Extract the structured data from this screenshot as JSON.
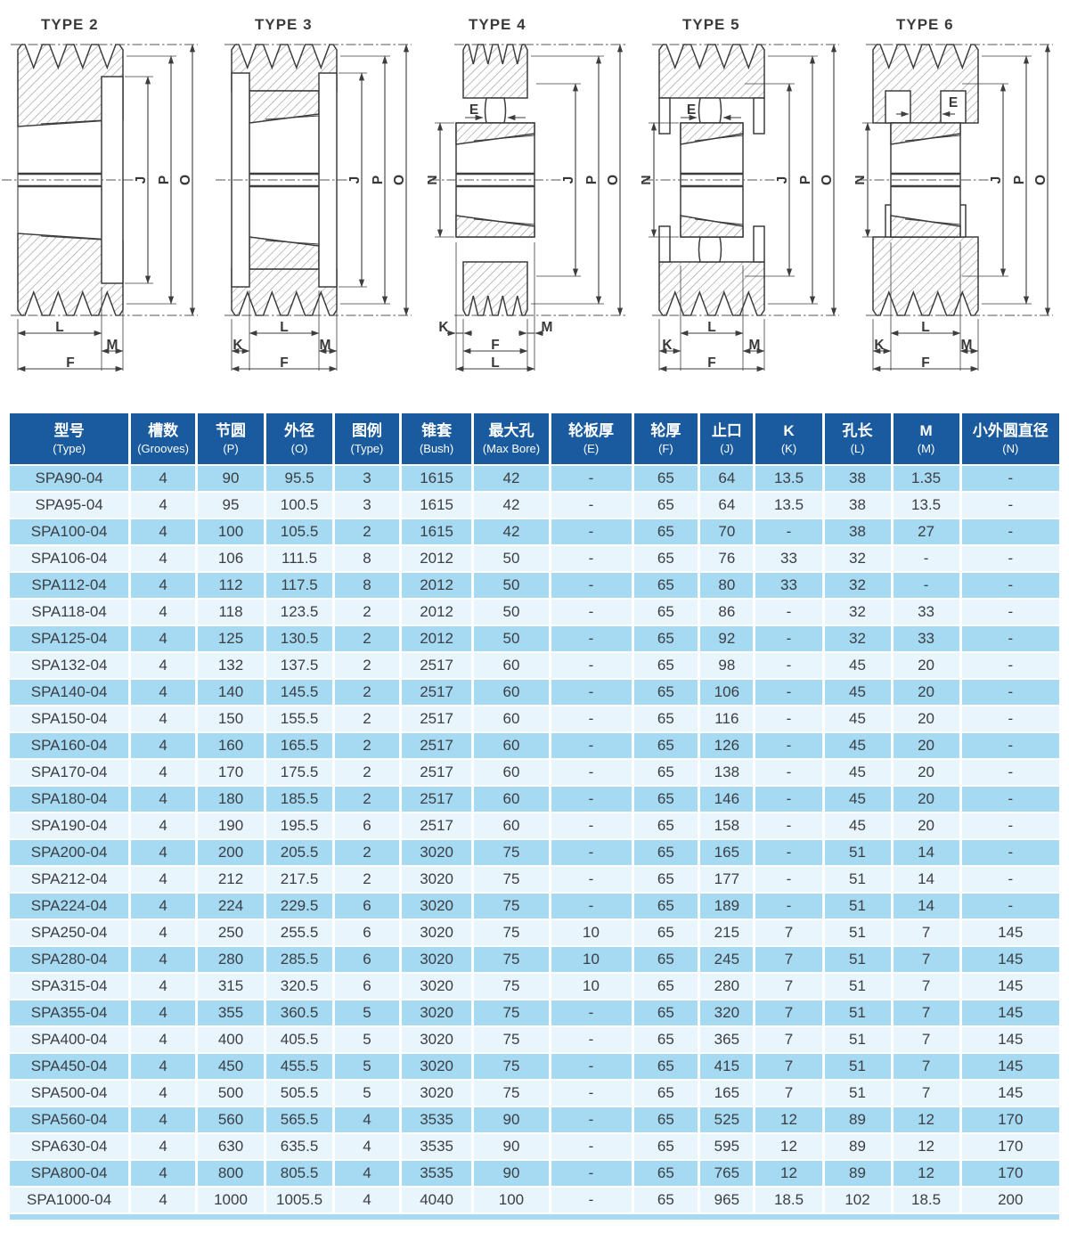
{
  "colors": {
    "header_bg": "#1a5a9e",
    "row_odd": "#a6d9f2",
    "row_even": "#e9f5fc",
    "text": "#3b3e42",
    "header_text": "#ffffff",
    "line": "#3d3d3d"
  },
  "diagrams": [
    {
      "title": "TYPE 2",
      "dims": {
        "J": "J",
        "P": "P",
        "O": "O",
        "L": "L",
        "M": "M",
        "F": "F"
      }
    },
    {
      "title": "TYPE 3",
      "dims": {
        "J": "J",
        "P": "P",
        "O": "O",
        "K": "K",
        "L": "L",
        "M": "M",
        "F": "F"
      }
    },
    {
      "title": "TYPE 4",
      "dims": {
        "E": "E",
        "N": "N",
        "J": "J",
        "P": "P",
        "O": "O",
        "K": "K",
        "L": "L",
        "M": "M",
        "F": "F"
      }
    },
    {
      "title": "TYPE 5",
      "dims": {
        "E": "E",
        "N": "N",
        "J": "J",
        "P": "P",
        "O": "O",
        "K": "K",
        "L": "L",
        "M": "M",
        "F": "F"
      }
    },
    {
      "title": "TYPE 6",
      "dims": {
        "E": "E",
        "N": "N",
        "J": "J",
        "P": "P",
        "O": "O",
        "K": "K",
        "L": "L",
        "M": "M",
        "F": "F"
      }
    }
  ],
  "table": {
    "headers": [
      [
        "型号",
        "(Type)"
      ],
      [
        "槽数",
        "(Grooves)"
      ],
      [
        "节圆",
        "(P)"
      ],
      [
        "外径",
        "(O)"
      ],
      [
        "图例",
        "(Type)"
      ],
      [
        "锥套",
        "(Bush)"
      ],
      [
        "最大孔",
        "(Max Bore)"
      ],
      [
        "轮板厚",
        "(E)"
      ],
      [
        "轮厚",
        "(F)"
      ],
      [
        "止口",
        "(J)"
      ],
      [
        "K",
        "(K)"
      ],
      [
        "孔长",
        "(L)"
      ],
      [
        "M",
        "(M)"
      ],
      [
        "小外圆直径",
        "(N)"
      ]
    ],
    "rows": [
      [
        "SPA90-04",
        "4",
        "90",
        "95.5",
        "3",
        "1615",
        "42",
        "-",
        "65",
        "64",
        "13.5",
        "38",
        "1.35",
        "-"
      ],
      [
        "SPA95-04",
        "4",
        "95",
        "100.5",
        "3",
        "1615",
        "42",
        "-",
        "65",
        "64",
        "13.5",
        "38",
        "13.5",
        "-"
      ],
      [
        "SPA100-04",
        "4",
        "100",
        "105.5",
        "2",
        "1615",
        "42",
        "-",
        "65",
        "70",
        "-",
        "38",
        "27",
        "-"
      ],
      [
        "SPA106-04",
        "4",
        "106",
        "111.5",
        "8",
        "2012",
        "50",
        "-",
        "65",
        "76",
        "33",
        "32",
        "-",
        "-"
      ],
      [
        "SPA112-04",
        "4",
        "112",
        "117.5",
        "8",
        "2012",
        "50",
        "-",
        "65",
        "80",
        "33",
        "32",
        "-",
        "-"
      ],
      [
        "SPA118-04",
        "4",
        "118",
        "123.5",
        "2",
        "2012",
        "50",
        "-",
        "65",
        "86",
        "-",
        "32",
        "33",
        "-"
      ],
      [
        "SPA125-04",
        "4",
        "125",
        "130.5",
        "2",
        "2012",
        "50",
        "-",
        "65",
        "92",
        "-",
        "32",
        "33",
        "-"
      ],
      [
        "SPA132-04",
        "4",
        "132",
        "137.5",
        "2",
        "2517",
        "60",
        "-",
        "65",
        "98",
        "-",
        "45",
        "20",
        "-"
      ],
      [
        "SPA140-04",
        "4",
        "140",
        "145.5",
        "2",
        "2517",
        "60",
        "-",
        "65",
        "106",
        "-",
        "45",
        "20",
        "-"
      ],
      [
        "SPA150-04",
        "4",
        "150",
        "155.5",
        "2",
        "2517",
        "60",
        "-",
        "65",
        "116",
        "-",
        "45",
        "20",
        "-"
      ],
      [
        "SPA160-04",
        "4",
        "160",
        "165.5",
        "2",
        "2517",
        "60",
        "-",
        "65",
        "126",
        "-",
        "45",
        "20",
        "-"
      ],
      [
        "SPA170-04",
        "4",
        "170",
        "175.5",
        "2",
        "2517",
        "60",
        "-",
        "65",
        "138",
        "-",
        "45",
        "20",
        "-"
      ],
      [
        "SPA180-04",
        "4",
        "180",
        "185.5",
        "2",
        "2517",
        "60",
        "-",
        "65",
        "146",
        "-",
        "45",
        "20",
        "-"
      ],
      [
        "SPA190-04",
        "4",
        "190",
        "195.5",
        "6",
        "2517",
        "60",
        "-",
        "65",
        "158",
        "-",
        "45",
        "20",
        "-"
      ],
      [
        "SPA200-04",
        "4",
        "200",
        "205.5",
        "2",
        "3020",
        "75",
        "-",
        "65",
        "165",
        "-",
        "51",
        "14",
        "-"
      ],
      [
        "SPA212-04",
        "4",
        "212",
        "217.5",
        "2",
        "3020",
        "75",
        "-",
        "65",
        "177",
        "-",
        "51",
        "14",
        "-"
      ],
      [
        "SPA224-04",
        "4",
        "224",
        "229.5",
        "6",
        "3020",
        "75",
        "-",
        "65",
        "189",
        "-",
        "51",
        "14",
        "-"
      ],
      [
        "SPA250-04",
        "4",
        "250",
        "255.5",
        "6",
        "3020",
        "75",
        "10",
        "65",
        "215",
        "7",
        "51",
        "7",
        "145"
      ],
      [
        "SPA280-04",
        "4",
        "280",
        "285.5",
        "6",
        "3020",
        "75",
        "10",
        "65",
        "245",
        "7",
        "51",
        "7",
        "145"
      ],
      [
        "SPA315-04",
        "4",
        "315",
        "320.5",
        "6",
        "3020",
        "75",
        "10",
        "65",
        "280",
        "7",
        "51",
        "7",
        "145"
      ],
      [
        "SPA355-04",
        "4",
        "355",
        "360.5",
        "5",
        "3020",
        "75",
        "-",
        "65",
        "320",
        "7",
        "51",
        "7",
        "145"
      ],
      [
        "SPA400-04",
        "4",
        "400",
        "405.5",
        "5",
        "3020",
        "75",
        "-",
        "65",
        "365",
        "7",
        "51",
        "7",
        "145"
      ],
      [
        "SPA450-04",
        "4",
        "450",
        "455.5",
        "5",
        "3020",
        "75",
        "-",
        "65",
        "415",
        "7",
        "51",
        "7",
        "145"
      ],
      [
        "SPA500-04",
        "4",
        "500",
        "505.5",
        "5",
        "3020",
        "75",
        "-",
        "65",
        "165",
        "7",
        "51",
        "7",
        "145"
      ],
      [
        "SPA560-04",
        "4",
        "560",
        "565.5",
        "4",
        "3535",
        "90",
        "-",
        "65",
        "525",
        "12",
        "89",
        "12",
        "170"
      ],
      [
        "SPA630-04",
        "4",
        "630",
        "635.5",
        "4",
        "3535",
        "90",
        "-",
        "65",
        "595",
        "12",
        "89",
        "12",
        "170"
      ],
      [
        "SPA800-04",
        "4",
        "800",
        "805.5",
        "4",
        "3535",
        "90",
        "-",
        "65",
        "765",
        "12",
        "89",
        "12",
        "170"
      ],
      [
        "SPA1000-04",
        "4",
        "1000",
        "1005.5",
        "4",
        "4040",
        "100",
        "-",
        "65",
        "965",
        "18.5",
        "102",
        "18.5",
        "200"
      ]
    ]
  }
}
